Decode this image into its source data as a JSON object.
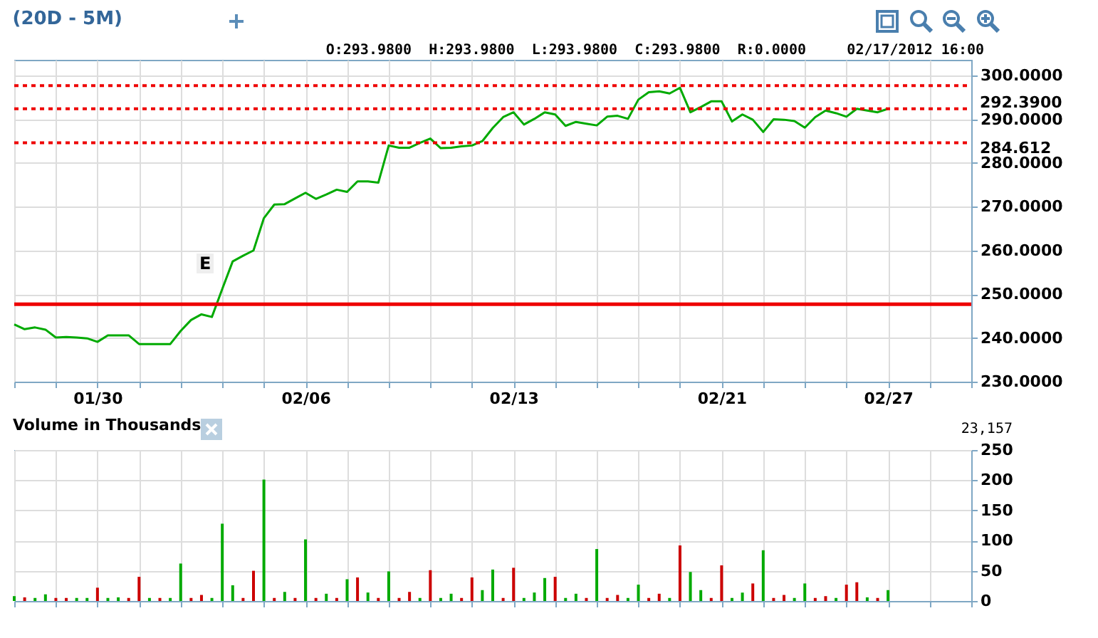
{
  "chart_data": [
    {
      "type": "line",
      "title": "(20D - 5M)",
      "annotations": [
        "O:293.9800  H:293.9800  L:293.9800  C:293.9800  R:0.0000",
        "02/17/2012 16:00",
        "E"
      ],
      "categories": [
        null,
        null,
        null,
        null,
        null,
        null,
        null,
        null,
        "01/30",
        null,
        null,
        null,
        null,
        null,
        null,
        null,
        null,
        null,
        null,
        null,
        null,
        null,
        null,
        null,
        null,
        null,
        null,
        null,
        "02/06",
        null,
        null,
        null,
        null,
        null,
        null,
        null,
        null,
        null,
        null,
        null,
        null,
        null,
        null,
        null,
        null,
        null,
        null,
        null,
        "02/13",
        null,
        null,
        null,
        null,
        null,
        null,
        null,
        null,
        null,
        null,
        null,
        null,
        null,
        null,
        null,
        null,
        null,
        null,
        null,
        "02/21",
        null,
        null,
        null,
        null,
        null,
        null,
        null,
        null,
        null,
        null,
        null,
        null,
        null,
        null,
        null,
        "02/27",
        null,
        null,
        null,
        null,
        null,
        null,
        null,
        null
      ],
      "series": [
        {
          "color": "#00aa00",
          "values": [
            243.1,
            242.0,
            242.4,
            241.9,
            240.1,
            240.2,
            240.1,
            239.9,
            239.1,
            240.6,
            240.6,
            240.6,
            238.6,
            238.6,
            238.6,
            238.6,
            241.6,
            244.1,
            245.4,
            244.8,
            251.2,
            257.5,
            258.8,
            260.0,
            267.4,
            270.5,
            270.6,
            271.9,
            273.2,
            271.8,
            272.8,
            273.9,
            273.4,
            275.8,
            275.8,
            275.5,
            284.0,
            283.5,
            283.5,
            284.6,
            285.6,
            283.4,
            283.5,
            283.8,
            284.0,
            285.0,
            288.0,
            290.5,
            291.6,
            288.8,
            290.1,
            291.6,
            291.1,
            288.5,
            289.4,
            289.0,
            288.6,
            290.6,
            290.8,
            290.1,
            294.5,
            296.2,
            296.4,
            295.9,
            297.2,
            291.6,
            292.8,
            294.1,
            294.1,
            289.5,
            291.1,
            289.9,
            287.1,
            290.0,
            289.9,
            289.6,
            288.1,
            290.5,
            292.0,
            291.4,
            290.6,
            292.4,
            292.0,
            291.6,
            292.4,
            null,
            null,
            null,
            null,
            null,
            null,
            null,
            null
          ]
        }
      ],
      "ylim": [
        230,
        303.6
      ],
      "yticks": [
        {
          "value": 230,
          "label": "230.0000"
        },
        {
          "value": 240,
          "label": "240.0000"
        },
        {
          "value": 250,
          "label": "250.0000"
        },
        {
          "value": 260,
          "label": "260.0000"
        },
        {
          "value": 270,
          "label": "270.0000"
        },
        {
          "value": 280,
          "label": "280.0000"
        },
        {
          "value": 290,
          "label": "290.0000"
        },
        {
          "value": 300,
          "label": "300.0000"
        }
      ],
      "ref_lines": [
        {
          "axis": "y",
          "value": 297.7,
          "label": null,
          "color": "#ee0000",
          "line_style": "dotted"
        },
        {
          "axis": "y",
          "value": 284.612,
          "label": "284.612",
          "color": "#ee0000",
          "line_style": "dotted"
        },
        {
          "axis": "y",
          "value": 292.39,
          "label": "292.3900",
          "color": "#ee0000",
          "line_style": "dotted"
        },
        {
          "axis": "y",
          "value": 247.7,
          "label": null,
          "color": "#ee0000",
          "line_style": "solid"
        }
      ],
      "grid": true,
      "marker": "none",
      "line_style": "solid"
    },
    {
      "type": "bar",
      "title": "Volume in Thousands",
      "annotations": [
        "23,157"
      ],
      "categories": [
        null,
        null,
        null,
        null,
        null,
        null,
        null,
        null,
        null,
        null,
        null,
        null,
        null,
        null,
        null,
        null,
        null,
        null,
        null,
        null,
        null,
        null,
        null,
        null,
        null,
        null,
        null,
        null,
        null,
        null,
        null,
        null,
        null,
        null,
        null,
        null,
        null,
        null,
        null,
        null,
        null,
        null,
        null,
        null,
        null,
        null,
        null,
        null,
        null,
        null,
        null,
        null,
        null,
        null,
        null,
        null,
        null,
        null,
        null,
        null,
        null,
        null,
        null,
        null,
        null,
        null,
        null,
        null,
        null,
        null,
        null,
        null,
        null,
        null,
        null,
        null,
        null,
        null,
        null,
        null,
        null,
        null,
        null,
        null,
        null,
        null,
        null,
        null,
        null,
        null,
        null,
        null,
        null
      ],
      "series": [
        {
          "values": [
            8,
            6,
            5,
            11,
            5,
            5,
            5,
            5,
            22,
            5,
            6,
            5,
            40,
            5,
            5,
            5,
            62,
            5,
            10,
            5,
            128,
            26,
            5,
            50,
            201,
            5,
            15,
            5,
            102,
            5,
            12,
            5,
            36,
            39,
            14,
            5,
            49,
            5,
            15,
            5,
            51,
            5,
            12,
            5,
            39,
            18,
            52,
            5,
            55,
            5,
            14,
            38,
            40,
            5,
            12,
            5,
            86,
            5,
            10,
            5,
            27,
            5,
            12,
            5,
            92,
            48,
            18,
            5,
            59,
            5,
            14,
            29,
            84,
            5,
            10,
            5,
            29,
            5,
            8,
            5,
            27,
            31,
            6,
            5,
            18,
            null,
            null,
            null,
            null,
            null,
            null,
            null,
            null
          ],
          "colors": [
            "#00aa00",
            "#cc0000",
            "#00aa00",
            "#00aa00",
            "#cc0000",
            "#cc0000",
            "#00aa00",
            "#00aa00",
            "#cc0000",
            "#00aa00",
            "#00aa00",
            "#cc0000",
            "#cc0000",
            "#00aa00",
            "#cc0000",
            "#00aa00",
            "#00aa00",
            "#cc0000",
            "#cc0000",
            "#00aa00",
            "#00aa00",
            "#00aa00",
            "#cc0000",
            "#cc0000",
            "#00aa00",
            "#cc0000",
            "#00aa00",
            "#cc0000",
            "#00aa00",
            "#cc0000",
            "#00aa00",
            "#cc0000",
            "#00aa00",
            "#cc0000",
            "#00aa00",
            "#cc0000",
            "#00aa00",
            "#cc0000",
            "#cc0000",
            "#00aa00",
            "#cc0000",
            "#00aa00",
            "#00aa00",
            "#cc0000",
            "#cc0000",
            "#00aa00",
            "#00aa00",
            "#cc0000",
            "#cc0000",
            "#00aa00",
            "#00aa00",
            "#00aa00",
            "#cc0000",
            "#00aa00",
            "#00aa00",
            "#cc0000",
            "#00aa00",
            "#cc0000",
            "#cc0000",
            "#00aa00",
            "#00aa00",
            "#cc0000",
            "#cc0000",
            "#00aa00",
            "#cc0000",
            "#00aa00",
            "#00aa00",
            "#cc0000",
            "#cc0000",
            "#00aa00",
            "#00aa00",
            "#cc0000",
            "#00aa00",
            "#cc0000",
            "#cc0000",
            "#00aa00",
            "#00aa00",
            "#cc0000",
            "#cc0000",
            "#00aa00",
            "#cc0000",
            "#cc0000",
            "#00aa00",
            "#cc0000",
            "#00aa00",
            null,
            null,
            null,
            null,
            null,
            null,
            null,
            null
          ]
        }
      ],
      "ylim": [
        0,
        250
      ],
      "yticks": [
        0,
        50,
        100,
        150,
        200,
        250
      ],
      "tick_labels": "y",
      "grid": true
    }
  ]
}
